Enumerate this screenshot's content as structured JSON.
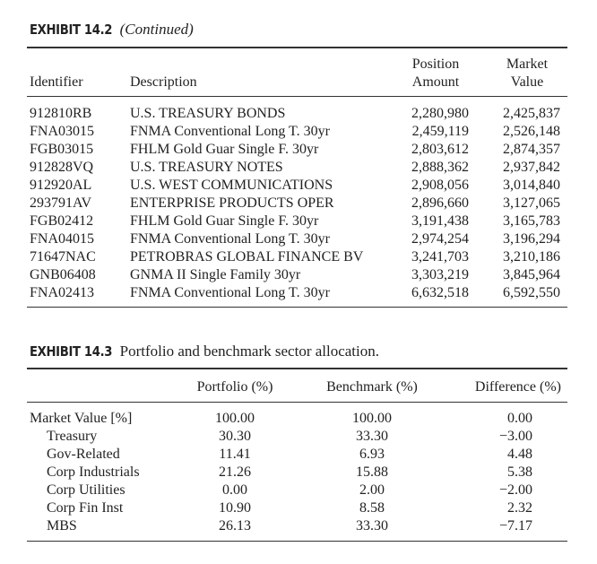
{
  "exhibit1": {
    "label": "EXHIBIT 14.2",
    "subtitle": "(Continued)",
    "headers": {
      "identifier": "Identifier",
      "description": "Description",
      "position_line1": "Position",
      "position_line2": "Amount",
      "market_line1": "Market",
      "market_line2": "Value"
    },
    "rows": [
      {
        "id": "912810RB",
        "desc": "U.S. TREASURY BONDS",
        "pos": "2,280,980",
        "mv": "2,425,837"
      },
      {
        "id": "FNA03015",
        "desc": "FNMA Conventional Long T. 30yr",
        "pos": "2,459,119",
        "mv": "2,526,148"
      },
      {
        "id": "FGB03015",
        "desc": "FHLM Gold Guar Single F. 30yr",
        "pos": "2,803,612",
        "mv": "2,874,357"
      },
      {
        "id": "912828VQ",
        "desc": "U.S. TREASURY NOTES",
        "pos": "2,888,362",
        "mv": "2,937,842"
      },
      {
        "id": "912920AL",
        "desc": "U.S. WEST COMMUNICATIONS",
        "pos": "2,908,056",
        "mv": "3,014,840"
      },
      {
        "id": "293791AV",
        "desc": "ENTERPRISE PRODUCTS OPER",
        "pos": "2,896,660",
        "mv": "3,127,065"
      },
      {
        "id": "FGB02412",
        "desc": "FHLM Gold Guar Single F. 30yr",
        "pos": "3,191,438",
        "mv": "3,165,783"
      },
      {
        "id": "FNA04015",
        "desc": "FNMA Conventional Long T. 30yr",
        "pos": "2,974,254",
        "mv": "3,196,294"
      },
      {
        "id": "71647NAC",
        "desc": "PETROBRAS GLOBAL FINANCE BV",
        "pos": "3,241,703",
        "mv": "3,210,186"
      },
      {
        "id": "GNB06408",
        "desc": "GNMA II Single Family 30yr",
        "pos": "3,303,219",
        "mv": "3,845,964"
      },
      {
        "id": "FNA02413",
        "desc": "FNMA Conventional Long T. 30yr",
        "pos": "6,632,518",
        "mv": "6,592,550"
      }
    ]
  },
  "exhibit2": {
    "label": "EXHIBIT 14.3",
    "subtitle": "Portfolio and benchmark sector allocation.",
    "headers": {
      "portfolio": "Portfolio (%)",
      "benchmark": "Benchmark (%)",
      "difference": "Difference (%)"
    },
    "rows": [
      {
        "label": "Market Value [%]",
        "indent": false,
        "portfolio": "100.00",
        "benchmark": "100.00",
        "difference": "0.00"
      },
      {
        "label": "Treasury",
        "indent": true,
        "portfolio": "30.30",
        "benchmark": "33.30",
        "difference": "−3.00"
      },
      {
        "label": "Gov-Related",
        "indent": true,
        "portfolio": "11.41",
        "benchmark": "6.93",
        "difference": "4.48"
      },
      {
        "label": "Corp Industrials",
        "indent": true,
        "portfolio": "21.26",
        "benchmark": "15.88",
        "difference": "5.38"
      },
      {
        "label": "Corp Utilities",
        "indent": true,
        "portfolio": "0.00",
        "benchmark": "2.00",
        "difference": "−2.00"
      },
      {
        "label": "Corp Fin Inst",
        "indent": true,
        "portfolio": "10.90",
        "benchmark": "8.58",
        "difference": "2.32"
      },
      {
        "label": "MBS",
        "indent": true,
        "portfolio": "26.13",
        "benchmark": "33.30",
        "difference": "−7.17"
      }
    ]
  }
}
